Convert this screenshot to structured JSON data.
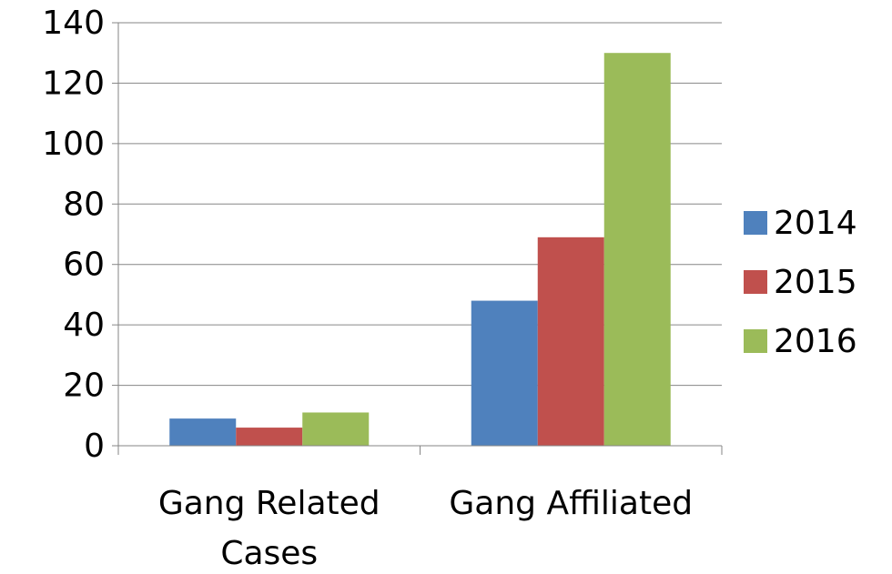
{
  "chart_data": {
    "type": "bar",
    "categories": [
      "Gang Related Cases",
      "Gang Affiliated"
    ],
    "category_lines": [
      [
        "Gang Related",
        "Cases"
      ],
      [
        "Gang Affiliated"
      ]
    ],
    "series": [
      {
        "name": "2014",
        "values": [
          9,
          48
        ],
        "color": "#4F81BD"
      },
      {
        "name": "2015",
        "values": [
          6,
          69
        ],
        "color": "#C0504D"
      },
      {
        "name": "2016",
        "values": [
          11,
          130
        ],
        "color": "#9BBB59"
      }
    ],
    "title": "",
    "xlabel": "",
    "ylabel": "",
    "ylim": [
      0,
      140
    ],
    "yticks": [
      0,
      20,
      40,
      60,
      80,
      100,
      120,
      140
    ],
    "grid": true,
    "legend": "right"
  }
}
